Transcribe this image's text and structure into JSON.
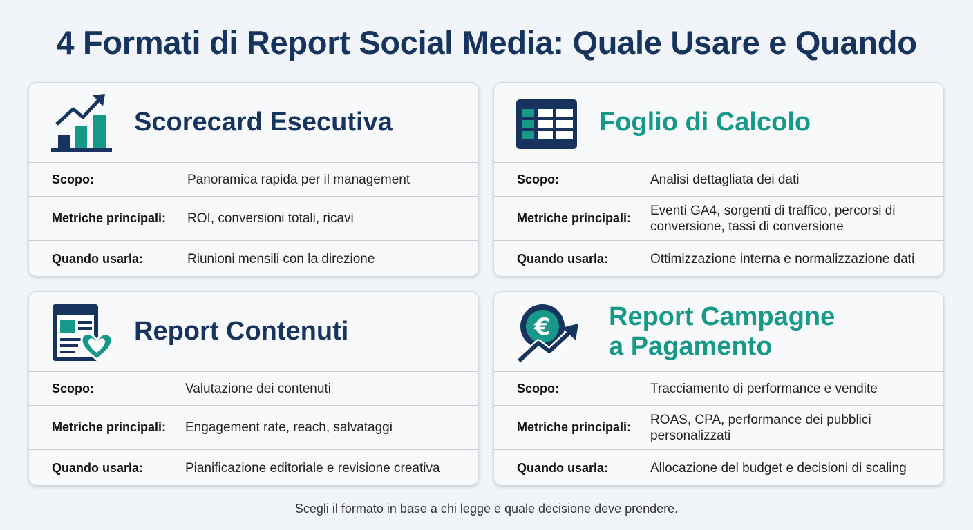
{
  "title": "4 Formati di Report Social Media: Quale Usare e Quando",
  "colors": {
    "navy": "#16345e",
    "teal": "#17998a",
    "background": "#f1f4f8",
    "card": "#f8f9fa"
  },
  "cards": [
    {
      "title": "Scorecard Esecutiva",
      "icon": "bar-chart-trend-icon",
      "rows": [
        {
          "label": "Scopo:",
          "value": "Panoramica rapida per il management"
        },
        {
          "label": "Metriche principali:",
          "value": "ROI, conversioni totali, ricavi"
        },
        {
          "label": "Quando usarla:",
          "value": "Riunioni mensili con la direzione"
        }
      ]
    },
    {
      "title": "Foglio di Calcolo",
      "icon": "spreadsheet-icon",
      "rows": [
        {
          "label": "Scopo:",
          "value": "Analisi dettagliata dei dati"
        },
        {
          "label": "Metriche principali:",
          "value": "Eventi GA4, sorgenti di traffico, percorsi di conversione, tassi di conversione"
        },
        {
          "label": "Quando usarla:",
          "value": "Ottimizzazione interna e normalizzazione dati"
        }
      ]
    },
    {
      "title": "Report Contenuti",
      "icon": "content-heart-icon",
      "rows": [
        {
          "label": "Scopo:",
          "value": "Valutazione dei contenuti"
        },
        {
          "label": "Metriche principali:",
          "value": "Engagement rate, reach, salvataggi"
        },
        {
          "label": "Quando usarla:",
          "value": "Pianificazione editoriale e revisione creativa"
        }
      ]
    },
    {
      "title": "Report Campagne a Pagamento",
      "icon": "euro-coin-growth-icon",
      "rows": [
        {
          "label": "Scopo:",
          "value": "Tracciamento di performance e vendite"
        },
        {
          "label": "Metriche principali:",
          "value": "ROAS, CPA, performance dei pubblici personalizzati"
        },
        {
          "label": "Quando usarla:",
          "value": "Allocazione del budget e decisioni di scaling"
        }
      ]
    }
  ],
  "footer": "Scegli il formato in base a chi legge e quale decisione deve prendere."
}
